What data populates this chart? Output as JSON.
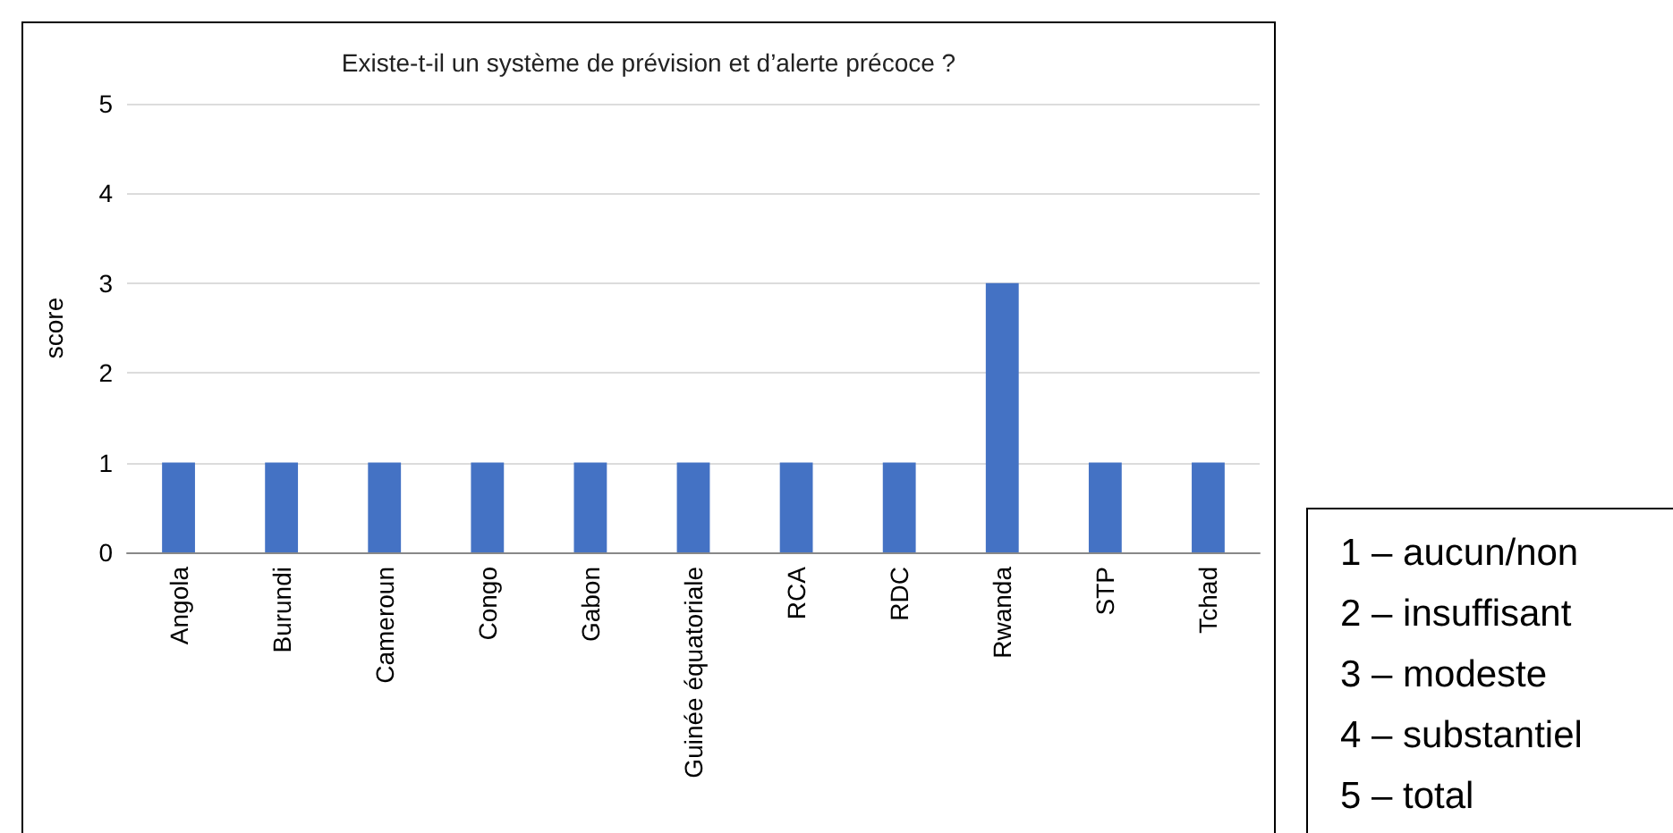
{
  "chart_data": {
    "type": "bar",
    "title": "Existe-t-il un système de prévision et d’alerte précoce ?",
    "ylabel": "score",
    "categories": [
      "Angola",
      "Burundi",
      "Cameroun",
      "Congo",
      "Gabon",
      "Guinée équatoriale",
      "RCA",
      "RDC",
      "Rwanda",
      "STP",
      "Tchad"
    ],
    "values": [
      1,
      1,
      1,
      1,
      1,
      1,
      1,
      1,
      3,
      1,
      1
    ],
    "color": "#4472c4",
    "ylim": [
      0,
      5
    ],
    "yticks": [
      0,
      1,
      2,
      3,
      4,
      5
    ],
    "grid": "y",
    "annotations": [
      "1 – aucun/non",
      "2 – insuffisant",
      "3 – modeste",
      "4 – substantiel",
      "5 – total"
    ]
  }
}
